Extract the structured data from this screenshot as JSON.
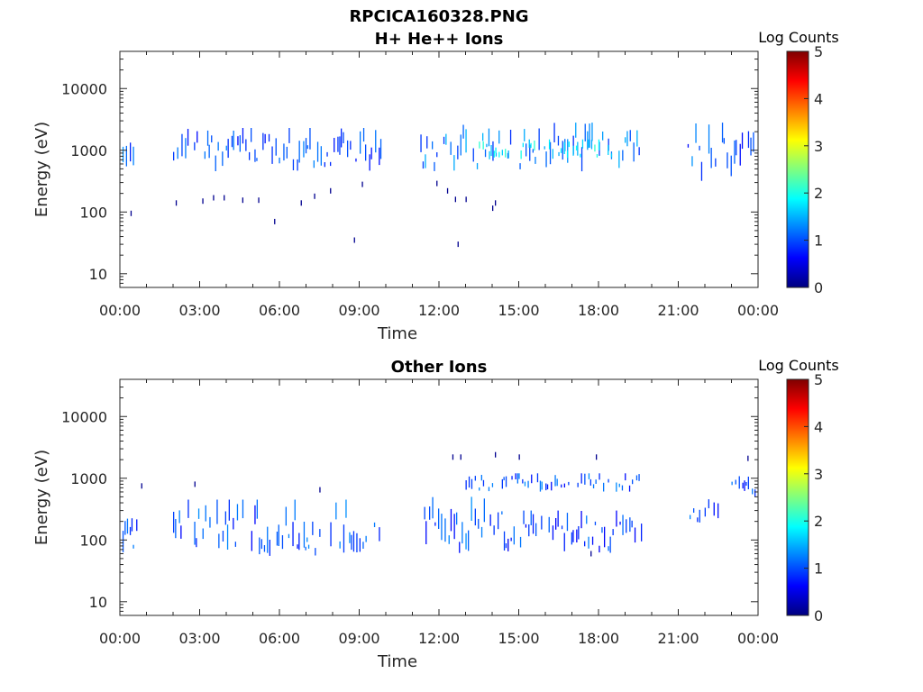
{
  "figure": {
    "suptitle": "RPCICA160328.PNG"
  },
  "colors": {
    "axis": "#262626",
    "low_count": "#00008f",
    "mid_count": "#00aaff",
    "colormap": [
      "#00007f",
      "#0000ff",
      "#007fff",
      "#00ffff",
      "#7fff7f",
      "#ffff00",
      "#ff7f00",
      "#ff0000",
      "#7f0000"
    ]
  },
  "chart_data": [
    {
      "type": "heatmap",
      "title": "H+ He++ Ions",
      "xlabel": "Time",
      "ylabel": "Energy (eV)",
      "x_unit": "hours",
      "xticks": [
        "00:00",
        "03:00",
        "06:00",
        "09:00",
        "12:00",
        "15:00",
        "18:00",
        "21:00",
        "00:00"
      ],
      "xlim": [
        0,
        24
      ],
      "yscale": "log",
      "yticks": [
        "10",
        "100",
        "1000",
        "10000"
      ],
      "ylim": [
        6,
        40000
      ],
      "colorbar": {
        "label": "Log Counts",
        "ticks": [
          "0",
          "1",
          "2",
          "3",
          "4",
          "5"
        ],
        "range": [
          0,
          5
        ]
      },
      "segments": [
        {
          "t_start": 0.1,
          "t_end": 0.7,
          "e_low": 450,
          "e_high": 2300,
          "count": 1.0
        },
        {
          "t_start": 2.0,
          "t_end": 9.9,
          "e_low": 450,
          "e_high": 2300,
          "count": 1.0
        },
        {
          "t_start": 11.3,
          "t_end": 19.6,
          "e_low": 450,
          "e_high": 2800,
          "count": 1.2
        },
        {
          "t_start": 13.5,
          "t_end": 18.5,
          "e_low": 700,
          "e_high": 1500,
          "count": 1.8
        },
        {
          "t_start": 21.2,
          "t_end": 24.0,
          "e_low": 280,
          "e_high": 2800,
          "count": 1.0
        }
      ],
      "sparse_points": [
        {
          "t": 0.4,
          "e": 95
        },
        {
          "t": 2.1,
          "e": 140
        },
        {
          "t": 3.1,
          "e": 150
        },
        {
          "t": 3.5,
          "e": 170
        },
        {
          "t": 3.9,
          "e": 170
        },
        {
          "t": 4.6,
          "e": 155
        },
        {
          "t": 5.2,
          "e": 155
        },
        {
          "t": 5.8,
          "e": 70
        },
        {
          "t": 6.8,
          "e": 140
        },
        {
          "t": 7.3,
          "e": 180
        },
        {
          "t": 7.9,
          "e": 220
        },
        {
          "t": 8.8,
          "e": 35
        },
        {
          "t": 9.1,
          "e": 280
        },
        {
          "t": 11.9,
          "e": 290
        },
        {
          "t": 12.3,
          "e": 220
        },
        {
          "t": 12.6,
          "e": 160
        },
        {
          "t": 12.7,
          "e": 30
        },
        {
          "t": 13.0,
          "e": 160
        },
        {
          "t": 14.0,
          "e": 115
        },
        {
          "t": 14.1,
          "e": 140
        }
      ]
    },
    {
      "type": "heatmap",
      "title": "Other Ions",
      "xlabel": "Time",
      "ylabel": "Energy (eV)",
      "x_unit": "hours",
      "xticks": [
        "00:00",
        "03:00",
        "06:00",
        "09:00",
        "12:00",
        "15:00",
        "18:00",
        "21:00",
        "00:00"
      ],
      "xlim": [
        0,
        24
      ],
      "yscale": "log",
      "yticks": [
        "10",
        "100",
        "1000",
        "10000"
      ],
      "ylim": [
        6,
        40000
      ],
      "colorbar": {
        "label": "Log Counts",
        "ticks": [
          "0",
          "1",
          "2",
          "3",
          "4",
          "5"
        ],
        "range": [
          0,
          5
        ]
      },
      "segments": [
        {
          "t_start": 0.1,
          "t_end": 0.7,
          "e_low": 50,
          "e_high": 250,
          "count": 1.0
        },
        {
          "t_start": 2.0,
          "t_end": 9.9,
          "e_low": 55,
          "e_high": 450,
          "count": 1.0
        },
        {
          "t_start": 11.3,
          "t_end": 14.5,
          "e_low": 60,
          "e_high": 500,
          "count": 1.0
        },
        {
          "t_start": 13.0,
          "t_end": 19.6,
          "e_low": 600,
          "e_high": 1200,
          "count": 1.0
        },
        {
          "t_start": 14.5,
          "t_end": 19.6,
          "e_low": 60,
          "e_high": 300,
          "count": 0.9
        },
        {
          "t_start": 21.2,
          "t_end": 22.5,
          "e_low": 180,
          "e_high": 500,
          "count": 1.0
        },
        {
          "t_start": 23.0,
          "t_end": 24.0,
          "e_low": 500,
          "e_high": 1100,
          "count": 0.9
        }
      ],
      "sparse_points": [
        {
          "t": 0.8,
          "e": 750
        },
        {
          "t": 2.8,
          "e": 800
        },
        {
          "t": 7.5,
          "e": 650
        },
        {
          "t": 12.5,
          "e": 2200
        },
        {
          "t": 12.8,
          "e": 2200
        },
        {
          "t": 14.1,
          "e": 2400
        },
        {
          "t": 15.0,
          "e": 2200
        },
        {
          "t": 17.9,
          "e": 2200
        },
        {
          "t": 23.6,
          "e": 2100
        },
        {
          "t": 24.0,
          "e": 2000
        },
        {
          "t": 17.7,
          "e": 60
        }
      ]
    }
  ]
}
